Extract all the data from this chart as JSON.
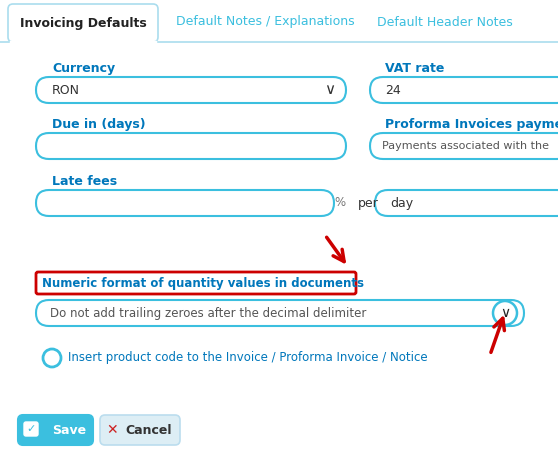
{
  "bg_color": "#ffffff",
  "tab_active": "Invoicing Defaults",
  "tab_inactive_1": "Default Notes / Explanations",
  "tab_inactive_2": "Default Header Notes",
  "tab_color": "#3bbfdf",
  "label_color": "#0077bb",
  "field_border_color": "#3bbfdf",
  "highlight_border_color": "#cc0000",
  "arrow_color": "#cc0000",
  "currency_label": "Currency",
  "vat_label": "VAT rate",
  "due_label": "Due in (days)",
  "proforma_label": "Proforma Invoices paymen",
  "latefees_label": "Late fees",
  "currency_value": "RON",
  "vat_value": "24",
  "per_label": "per",
  "day_value": "day",
  "percent_label": "%",
  "proforma_text": "Payments associated with the",
  "highlight_text": "Numeric format of quantity values in documents",
  "dropdown_text": "Do not add trailing zeroes after the decimal delimiter",
  "checkbox_text": "Insert product code to the Invoice / Proforma Invoice / Notice",
  "save_label": "Save",
  "cancel_label": "Cancel",
  "button_save_color": "#3bbfdf",
  "tab_line_color": "#aaddee"
}
